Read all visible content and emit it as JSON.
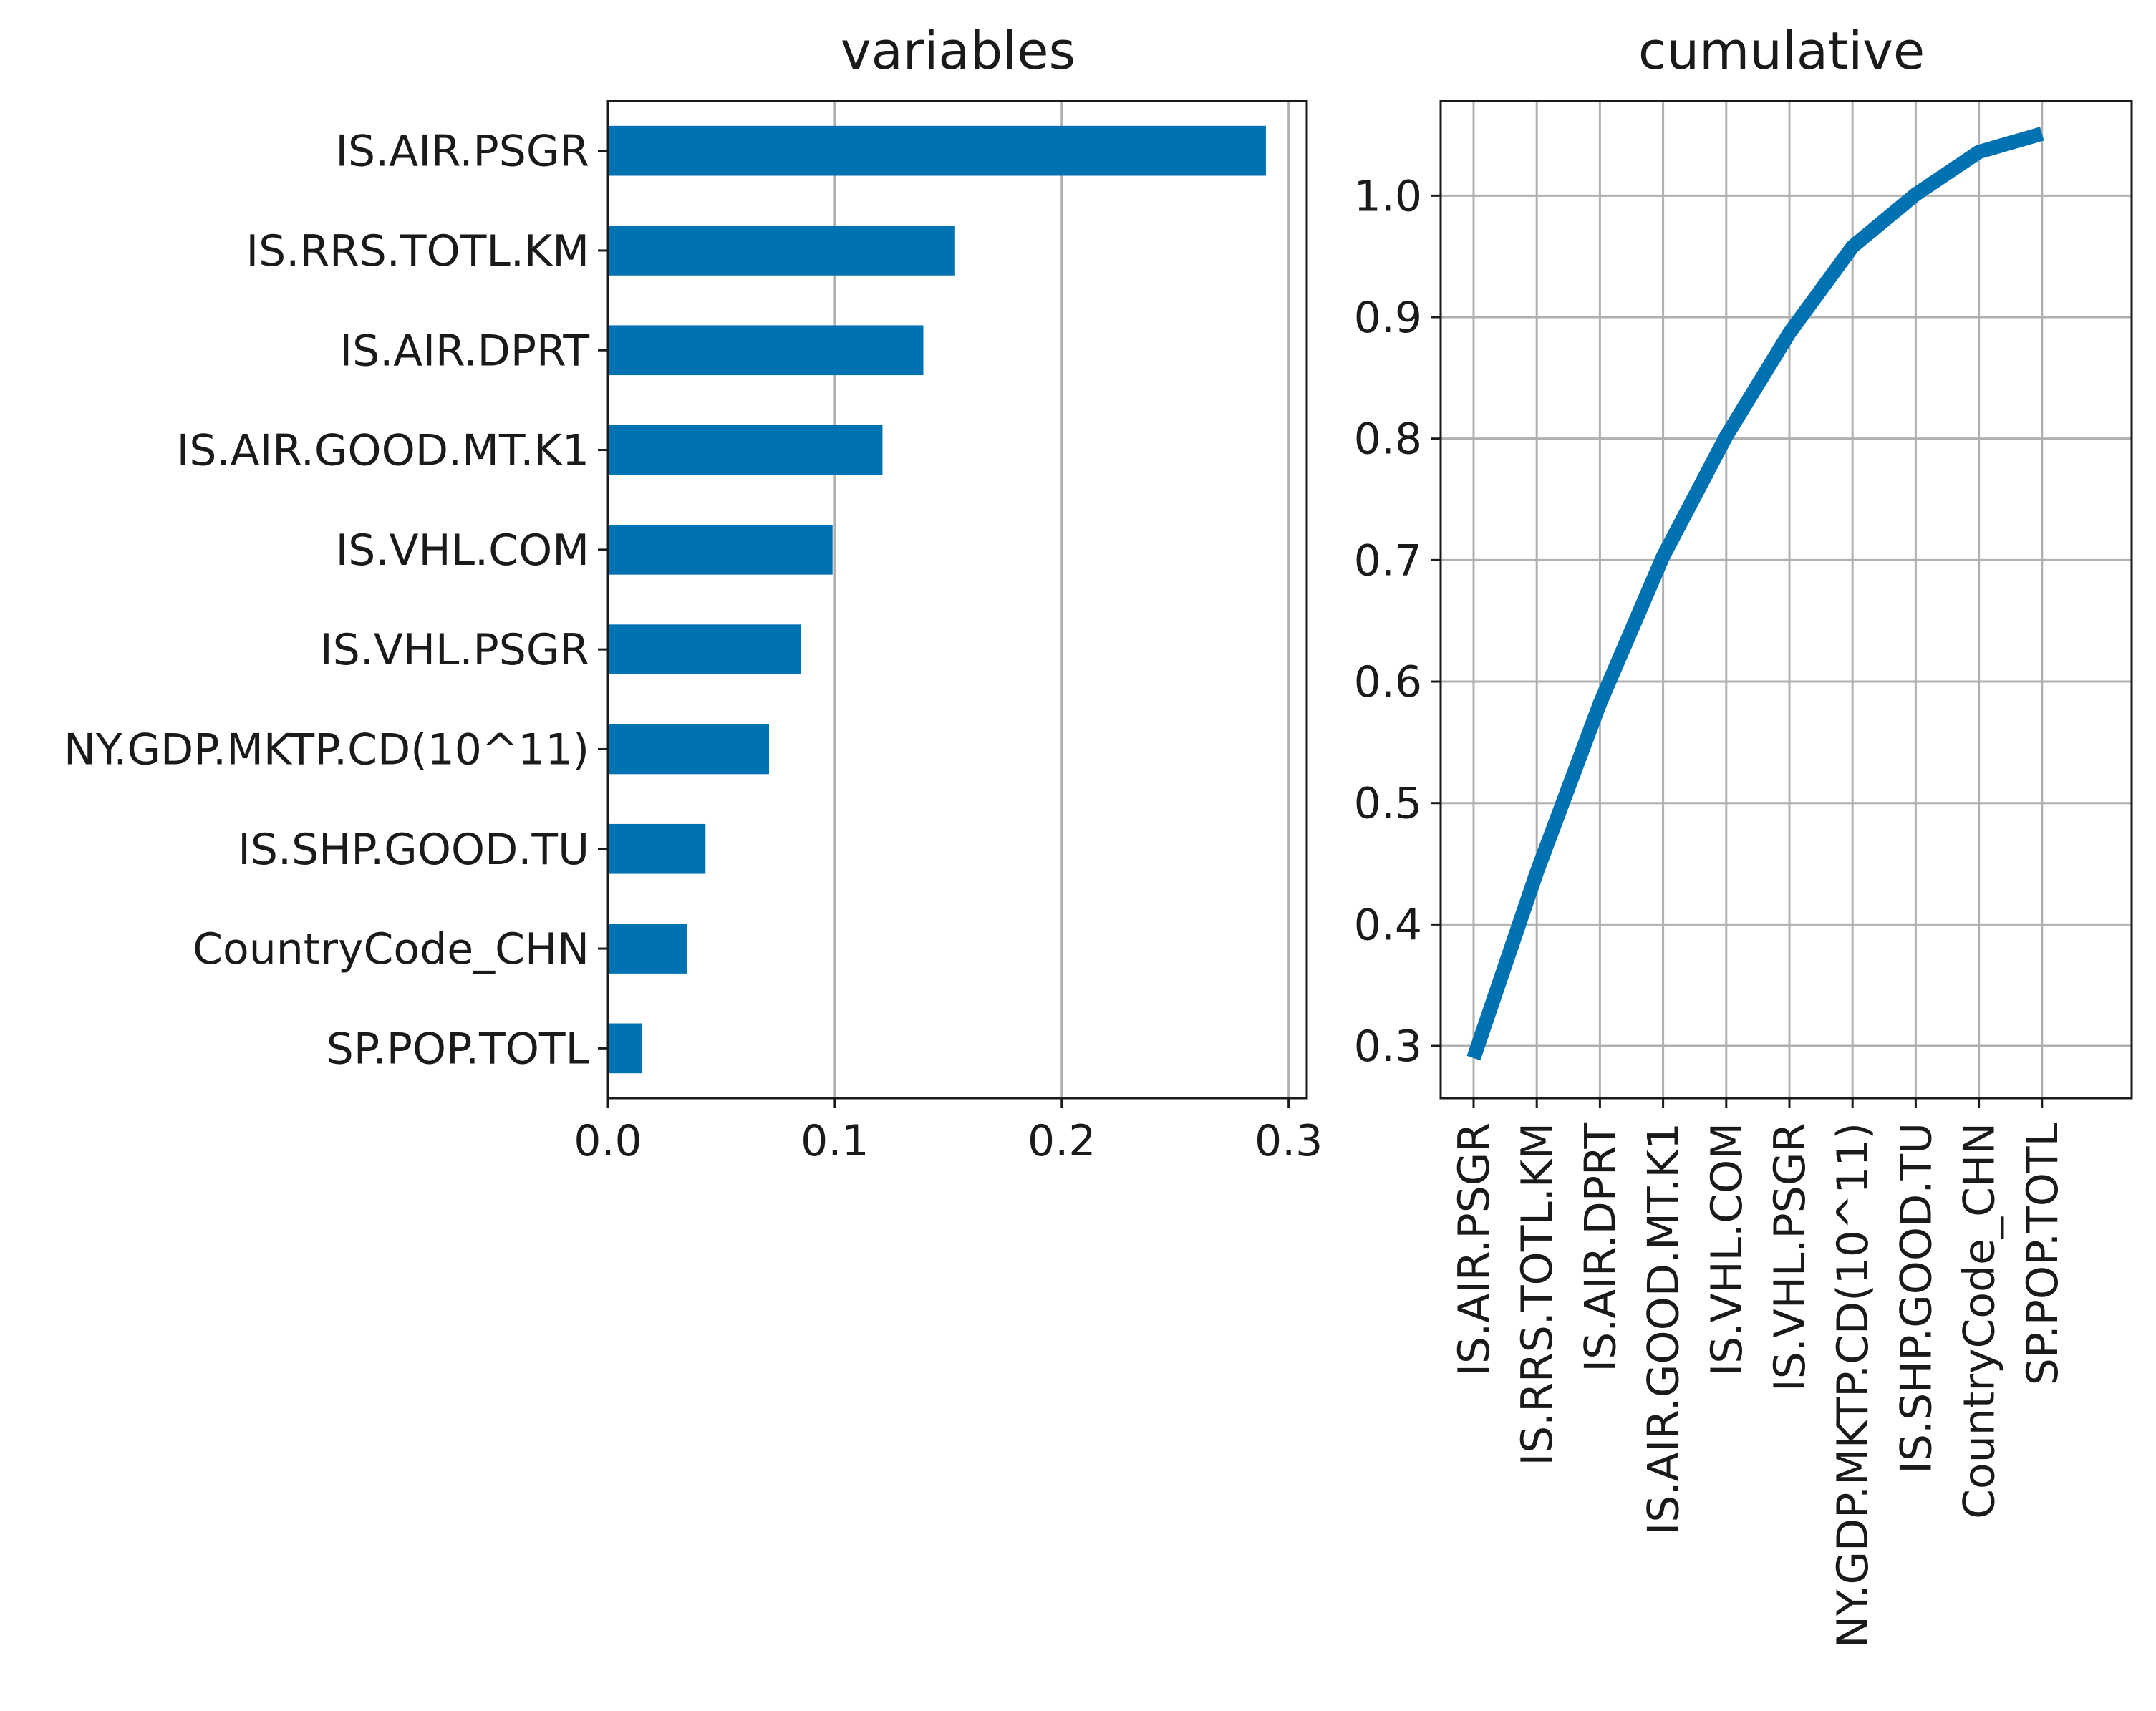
{
  "chart_data": [
    {
      "type": "bar",
      "orientation": "horizontal",
      "title": "variables",
      "xlabel": "",
      "ylabel": "",
      "categories": [
        "IS.AIR.PSGR",
        "IS.RRS.TOTL.KM",
        "IS.AIR.DPRT",
        "IS.AIR.GOOD.MT.K1",
        "IS.VHL.COM",
        "IS.VHL.PSGR",
        "NY.GDP.MKTP.CD(10^11)",
        "IS.SHP.GOOD.TU",
        "CountryCode_CHN",
        "SP.POP.TOTL"
      ],
      "values": [
        0.29,
        0.153,
        0.139,
        0.121,
        0.099,
        0.085,
        0.071,
        0.043,
        0.035,
        0.015
      ],
      "xlim": [
        0.0,
        0.308
      ],
      "xticks": [
        0.0,
        0.1,
        0.2,
        0.3
      ],
      "xtick_labels": [
        "0.0",
        "0.1",
        "0.2",
        "0.3"
      ],
      "grid": "x",
      "color": "#0072B2"
    },
    {
      "type": "line",
      "title": "cumulative",
      "xlabel": "",
      "ylabel": "",
      "categories": [
        "IS.AIR.PSGR",
        "IS.RRS.TOTL.KM",
        "IS.AIR.DPRT",
        "IS.AIR.GOOD.MT.K1",
        "IS.VHL.COM",
        "IS.VHL.PSGR",
        "NY.GDP.MKTP.CD(10^11)",
        "IS.SHP.GOOD.TU",
        "CountryCode_CHN",
        "SP.POP.TOTL"
      ],
      "values": [
        0.29,
        0.443,
        0.582,
        0.703,
        0.802,
        0.887,
        0.958,
        1.001,
        1.036,
        1.051
      ],
      "ylim": [
        0.257,
        1.078
      ],
      "yticks": [
        0.3,
        0.4,
        0.5,
        0.6,
        0.7,
        0.8,
        0.9,
        1.0
      ],
      "ytick_labels": [
        "0.3",
        "0.4",
        "0.5",
        "0.6",
        "0.7",
        "0.8",
        "0.9",
        "1.0"
      ],
      "grid": "both",
      "color": "#0072B2"
    }
  ]
}
